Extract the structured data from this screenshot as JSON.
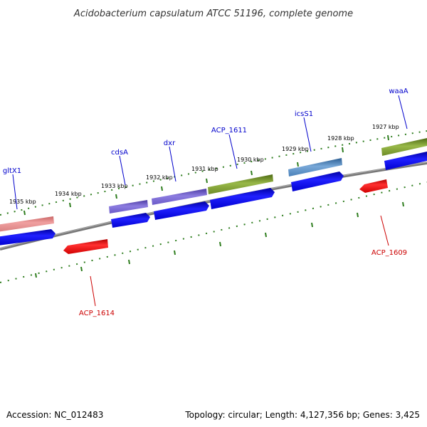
{
  "title": "Acidobacterium capsulatum ATCC 51196, complete genome",
  "footer": {
    "accession": "Accession: NC_012483",
    "summary": "Topology: circular; Length: 4,127,356 bp; Genes: 3,425"
  },
  "colors": {
    "backbone": "#808080",
    "ticks": "#2e7d1e",
    "cds_blue": "#0000ff",
    "rna_red": "#ff0000",
    "label_blue": "#0000cc",
    "label_red": "#cc0000"
  },
  "scale_labels": [
    "1935 kbp",
    "1934 kbp",
    "1933 kbp",
    "1932 kbp",
    "1931 kbp",
    "1930 kbp",
    "1929 kbp",
    "1928 kbp",
    "1927 kbp"
  ],
  "gene_labels": [
    {
      "text": "gltX1",
      "strand": "forward",
      "color": "#0000cc"
    },
    {
      "text": "cdsA",
      "strand": "forward",
      "color": "#0000cc"
    },
    {
      "text": "dxr",
      "strand": "forward",
      "color": "#0000cc"
    },
    {
      "text": "ACP_1611",
      "strand": "forward",
      "color": "#0000cc"
    },
    {
      "text": "icsS1",
      "strand": "forward",
      "color": "#0000cc"
    },
    {
      "text": "waaA",
      "strand": "forward",
      "color": "#0000cc"
    },
    {
      "text": "ACP_1609",
      "strand": "reverse",
      "color": "#cc0000"
    },
    {
      "text": "ACP_1614",
      "strand": "reverse",
      "color": "#cc0000"
    }
  ]
}
